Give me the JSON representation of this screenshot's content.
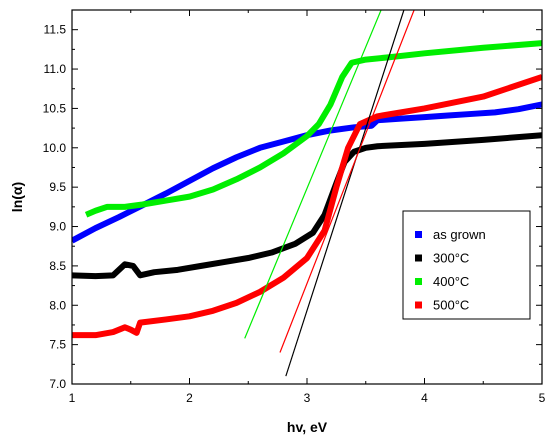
{
  "chart_data": {
    "type": "line",
    "xlabel": "hv, eV",
    "ylabel": "ln(α)",
    "xlim": [
      1,
      5
    ],
    "ylim": [
      7.0,
      11.75
    ],
    "x_ticks": [
      1,
      2,
      3,
      4,
      5
    ],
    "y_ticks": [
      7.0,
      7.5,
      8.0,
      8.5,
      9.0,
      9.5,
      10.0,
      10.5,
      11.0,
      11.5
    ],
    "grid": false,
    "legend_position": "center-right",
    "series": [
      {
        "name": "as grown",
        "color": "#0000ff",
        "points": [
          [
            1.0,
            8.82
          ],
          [
            1.2,
            8.98
          ],
          [
            1.4,
            9.12
          ],
          [
            1.6,
            9.27
          ],
          [
            1.8,
            9.42
          ],
          [
            2.0,
            9.58
          ],
          [
            2.2,
            9.74
          ],
          [
            2.4,
            9.88
          ],
          [
            2.6,
            10.0
          ],
          [
            2.8,
            10.08
          ],
          [
            3.0,
            10.16
          ],
          [
            3.2,
            10.22
          ],
          [
            3.4,
            10.26
          ],
          [
            3.55,
            10.28
          ],
          [
            3.6,
            10.35
          ],
          [
            3.8,
            10.37
          ],
          [
            4.0,
            10.39
          ],
          [
            4.2,
            10.41
          ],
          [
            4.4,
            10.43
          ],
          [
            4.6,
            10.45
          ],
          [
            4.8,
            10.49
          ],
          [
            5.0,
            10.55
          ]
        ]
      },
      {
        "name": "300°C",
        "color": "#000000",
        "points": [
          [
            1.0,
            8.38
          ],
          [
            1.2,
            8.37
          ],
          [
            1.35,
            8.38
          ],
          [
            1.45,
            8.52
          ],
          [
            1.52,
            8.5
          ],
          [
            1.58,
            8.38
          ],
          [
            1.7,
            8.42
          ],
          [
            1.9,
            8.45
          ],
          [
            2.1,
            8.5
          ],
          [
            2.3,
            8.55
          ],
          [
            2.5,
            8.6
          ],
          [
            2.7,
            8.67
          ],
          [
            2.9,
            8.78
          ],
          [
            3.05,
            8.92
          ],
          [
            3.15,
            9.15
          ],
          [
            3.25,
            9.55
          ],
          [
            3.32,
            9.82
          ],
          [
            3.4,
            9.95
          ],
          [
            3.5,
            10.0
          ],
          [
            3.6,
            10.02
          ],
          [
            4.0,
            10.05
          ],
          [
            4.5,
            10.1
          ],
          [
            5.0,
            10.16
          ]
        ]
      },
      {
        "name": "400°C",
        "color": "#00ee00",
        "points": [
          [
            1.12,
            9.15
          ],
          [
            1.2,
            9.2
          ],
          [
            1.3,
            9.25
          ],
          [
            1.45,
            9.25
          ],
          [
            1.6,
            9.28
          ],
          [
            1.8,
            9.33
          ],
          [
            2.0,
            9.38
          ],
          [
            2.2,
            9.47
          ],
          [
            2.4,
            9.6
          ],
          [
            2.6,
            9.75
          ],
          [
            2.8,
            9.93
          ],
          [
            3.0,
            10.15
          ],
          [
            3.1,
            10.3
          ],
          [
            3.2,
            10.55
          ],
          [
            3.3,
            10.9
          ],
          [
            3.38,
            11.08
          ],
          [
            3.5,
            11.12
          ],
          [
            3.7,
            11.15
          ],
          [
            4.0,
            11.2
          ],
          [
            4.5,
            11.27
          ],
          [
            5.0,
            11.33
          ]
        ]
      },
      {
        "name": "500°C",
        "color": "#ff0000",
        "points": [
          [
            1.0,
            7.62
          ],
          [
            1.2,
            7.62
          ],
          [
            1.35,
            7.66
          ],
          [
            1.45,
            7.72
          ],
          [
            1.5,
            7.69
          ],
          [
            1.55,
            7.65
          ],
          [
            1.58,
            7.78
          ],
          [
            1.8,
            7.82
          ],
          [
            2.0,
            7.86
          ],
          [
            2.2,
            7.93
          ],
          [
            2.4,
            8.03
          ],
          [
            2.6,
            8.17
          ],
          [
            2.8,
            8.35
          ],
          [
            3.0,
            8.6
          ],
          [
            3.15,
            8.95
          ],
          [
            3.25,
            9.5
          ],
          [
            3.35,
            10.0
          ],
          [
            3.45,
            10.3
          ],
          [
            3.6,
            10.4
          ],
          [
            3.8,
            10.45
          ],
          [
            4.0,
            10.5
          ],
          [
            4.5,
            10.65
          ],
          [
            5.0,
            10.9
          ]
        ]
      }
    ],
    "fit_lines": [
      {
        "color": "#000000",
        "points": [
          [
            2.82,
            7.1
          ],
          [
            3.84,
            11.82
          ]
        ]
      },
      {
        "color": "#ff0000",
        "points": [
          [
            2.77,
            7.4
          ],
          [
            3.93,
            11.82
          ]
        ]
      },
      {
        "color": "#00ee00",
        "points": [
          [
            2.47,
            7.58
          ],
          [
            3.65,
            11.82
          ]
        ]
      }
    ]
  }
}
